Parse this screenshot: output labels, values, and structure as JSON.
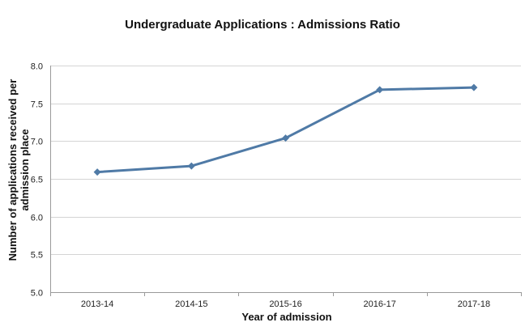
{
  "chart_data": {
    "type": "line",
    "title": "Undergraduate Applications : Admissions Ratio",
    "xlabel": "Year of admission",
    "ylabel": "Number of applications received per admission place",
    "categories": [
      "2013-14",
      "2014-15",
      "2015-16",
      "2016-17",
      "2017-18"
    ],
    "values": [
      6.59,
      6.67,
      7.04,
      7.68,
      7.71
    ],
    "ylim": [
      5.0,
      8.0
    ],
    "yticks": [
      "5.0",
      "5.5",
      "6.0",
      "6.5",
      "7.0",
      "7.5",
      "8.0"
    ],
    "grid": true,
    "legend": "none",
    "line_color": "#4f7aa6",
    "grid_color": "#d4d4d4"
  }
}
